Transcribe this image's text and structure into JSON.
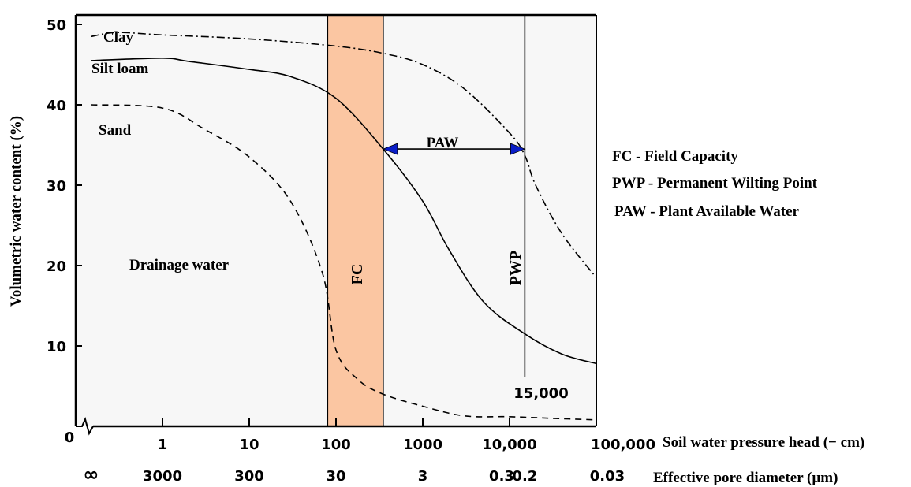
{
  "chart_data": {
    "type": "line",
    "title": "",
    "ylabel": "Volumetric water content (%)",
    "xlabel": "Soil water pressure head (− cm)",
    "x2label": "Effective pore diameter (µm)",
    "x_scale": "log",
    "ylim": [
      0,
      50
    ],
    "y_ticks": [
      "50",
      "40",
      "30",
      "20",
      "10"
    ],
    "x_origin_label": "0",
    "x_ticks": [
      {
        "label": "1",
        "value": 1
      },
      {
        "label": "10",
        "value": 10
      },
      {
        "label": "100",
        "value": 100
      },
      {
        "label": "1000",
        "value": 1000
      },
      {
        "label": "10,000",
        "value": 10000
      },
      {
        "label": "100,000",
        "value": 100000
      }
    ],
    "x2_ticks": [
      {
        "label": "∞",
        "head": 0.15
      },
      {
        "label": "3000",
        "head": 1
      },
      {
        "label": "300",
        "head": 10
      },
      {
        "label": "30",
        "head": 100
      },
      {
        "label": "3",
        "head": 1000
      },
      {
        "label": "0.3",
        "head": 10000
      },
      {
        "label": "0.2",
        "head": 15000
      },
      {
        "label": "0.03",
        "head": 100000
      }
    ],
    "series": [
      {
        "name": "Clay",
        "style": "dash-dot",
        "points": [
          [
            0.15,
            48.5
          ],
          [
            0.3,
            49
          ],
          [
            1,
            48.7
          ],
          [
            10,
            48.2
          ],
          [
            100,
            47.3
          ],
          [
            350,
            46.4
          ],
          [
            1000,
            45
          ],
          [
            3000,
            42
          ],
          [
            10000,
            36.5
          ],
          [
            15000,
            33.7
          ],
          [
            20000,
            30
          ],
          [
            40000,
            24
          ],
          [
            100000,
            18.5
          ]
        ]
      },
      {
        "name": "Silt loam",
        "style": "solid",
        "points": [
          [
            0.15,
            45.5
          ],
          [
            1,
            45.8
          ],
          [
            2,
            45.4
          ],
          [
            10,
            44.4
          ],
          [
            30,
            43.5
          ],
          [
            100,
            40.8
          ],
          [
            350,
            34.5
          ],
          [
            1000,
            28
          ],
          [
            2000,
            22
          ],
          [
            5000,
            15.5
          ],
          [
            15000,
            11.5
          ],
          [
            40000,
            9
          ],
          [
            100000,
            7.8
          ]
        ]
      },
      {
        "name": "Sand",
        "style": "dashed",
        "points": [
          [
            0.15,
            40
          ],
          [
            1,
            39.6
          ],
          [
            3,
            37
          ],
          [
            10,
            33.5
          ],
          [
            30,
            28
          ],
          [
            70,
            19
          ],
          [
            100,
            9.5
          ],
          [
            180,
            5.8
          ],
          [
            350,
            4
          ],
          [
            1000,
            2.5
          ],
          [
            3000,
            1.3
          ],
          [
            10000,
            1.2
          ],
          [
            30000,
            1
          ],
          [
            100000,
            0.8
          ]
        ]
      }
    ],
    "fc_band": {
      "label": "FC",
      "x_from": 80,
      "x_to": 350,
      "color": "#fbc6a2"
    },
    "pwp_line": {
      "label": "PWP",
      "x": 15000,
      "value_label": "15,000"
    },
    "paw_arrow": {
      "label": "PAW",
      "x_from": 350,
      "x_to": 15000,
      "y": 34.5,
      "arrow_color": "#0a1ec8"
    },
    "annotations": {
      "clay": "Clay",
      "silt_loam": "Silt loam",
      "sand": "Sand",
      "drainage": "Drainage water"
    },
    "legend": [
      "FC - Field Capacity",
      "PWP - Permanent Wilting Point",
      "PAW - Plant Available Water"
    ],
    "plot_background": "#f7f7f7"
  }
}
